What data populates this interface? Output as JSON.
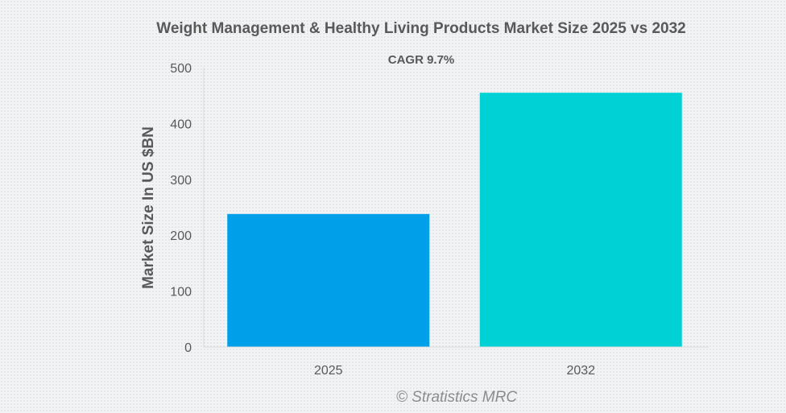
{
  "chart_data": {
    "type": "bar",
    "title": "Weight Management & Healthy Living Products Market Size 2025 vs 2032",
    "subtitle": "CAGR 9.7%",
    "xlabel": "",
    "ylabel": "Market Size In US $BN",
    "categories": [
      "2025",
      "2032"
    ],
    "values": [
      238,
      455
    ],
    "colors": [
      "#009fea",
      "#00d1d4"
    ],
    "ylim": [
      0,
      500
    ],
    "yticks": [
      0,
      100,
      200,
      300,
      400,
      500
    ],
    "grid": false,
    "legend": "none",
    "credit": "© Stratistics MRC"
  }
}
